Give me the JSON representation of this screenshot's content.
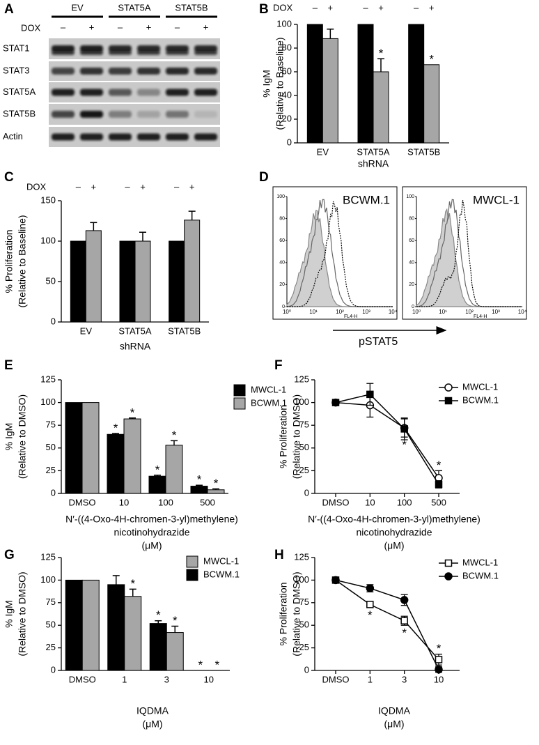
{
  "blot": {
    "panel": "A",
    "groups": [
      "EV",
      "STAT5A",
      "STAT5B"
    ],
    "dox_label": "DOX",
    "dox_signs": [
      "–",
      "+",
      "–",
      "+",
      "–",
      "+"
    ],
    "rows": [
      "STAT1",
      "STAT3",
      "STAT5A",
      "STAT5B",
      "Actin"
    ]
  },
  "flow": {
    "panel": "D",
    "plots": [
      {
        "label": "BCWM.1"
      },
      {
        "label": "MWCL-1"
      }
    ],
    "xticks": [
      "10⁰",
      "10¹",
      "10²",
      "10³",
      "10⁴"
    ],
    "yticks": [
      0,
      20,
      40,
      60,
      80,
      100
    ],
    "xlabel": "FL4-H",
    "arrow_label": "pSTAT5"
  },
  "chart_data": [
    {
      "panel": "B",
      "type": "bar",
      "dox_label": "DOX",
      "dox_signs": [
        "–",
        "+",
        "–",
        "+",
        "–",
        "+"
      ],
      "categories": [
        "EV",
        "STAT5A",
        "STAT5B"
      ],
      "ylabel": [
        "% IgM",
        "(Relative to Baseline)"
      ],
      "xlabel": [
        "shRNA"
      ],
      "ylim": [
        0,
        100
      ],
      "yticks": [
        0,
        20,
        40,
        60,
        80,
        100
      ],
      "series": [
        {
          "color": "#000000",
          "values": [
            100,
            100,
            100
          ]
        },
        {
          "color": "#a6a6a6",
          "values": [
            88,
            60,
            66
          ],
          "errors": [
            8,
            11,
            null
          ],
          "significance": [
            null,
            "*",
            "*"
          ]
        }
      ]
    },
    {
      "panel": "C",
      "type": "bar",
      "dox_label": "DOX",
      "dox_signs": [
        "–",
        "+",
        "–",
        "+",
        "–",
        "+"
      ],
      "categories": [
        "EV",
        "STAT5A",
        "STAT5B"
      ],
      "ylabel": [
        "% Proliferation",
        "(Relative to Baseline)"
      ],
      "xlabel": [
        "shRNA"
      ],
      "ylim": [
        0,
        150
      ],
      "yticks": [
        0,
        50,
        100,
        150
      ],
      "series": [
        {
          "color": "#000000",
          "values": [
            100,
            100,
            100
          ]
        },
        {
          "color": "#a6a6a6",
          "values": [
            113,
            100,
            126
          ],
          "errors": [
            10,
            11,
            11
          ]
        }
      ]
    },
    {
      "panel": "E",
      "type": "bar",
      "categories": [
        "DMSO",
        "10",
        "100",
        "500"
      ],
      "ylabel": [
        "% IgM",
        "(Relative to DMSO)"
      ],
      "xlabel": [
        "N′-((4-Oxo-4H-chromen-3-yl)methylene)",
        "nicotinohydrazide",
        "(μM)"
      ],
      "ylim": [
        0,
        125
      ],
      "yticks": [
        0,
        25,
        50,
        75,
        100,
        125
      ],
      "series": [
        {
          "name": "MWCL-1",
          "color": "#000000",
          "values": [
            100,
            65,
            19,
            8
          ],
          "errors": [
            null,
            1,
            1,
            1
          ],
          "significance": [
            null,
            "*",
            "*",
            "*"
          ]
        },
        {
          "name": "BCWM.1",
          "color": "#a6a6a6",
          "values": [
            100,
            82,
            53,
            4
          ],
          "errors": [
            null,
            1,
            5,
            1
          ],
          "significance": [
            null,
            "*",
            "*",
            "*"
          ]
        }
      ]
    },
    {
      "panel": "F",
      "type": "line",
      "categories": [
        "DMSO",
        "10",
        "100",
        "500"
      ],
      "ylabel": [
        "% Proliferation",
        "(Relative to DMSO)"
      ],
      "xlabel": [
        "N′-((4-Oxo-4H-chromen-3-yl)methylene)",
        "nicotinohydrazide",
        "(μM)"
      ],
      "ylim": [
        0,
        125
      ],
      "yticks": [
        0,
        25,
        50,
        75,
        100,
        125
      ],
      "series": [
        {
          "name": "MWCL-1",
          "color": "#000000",
          "marker": "circle",
          "filled": false,
          "values": [
            100,
            97,
            72,
            17
          ],
          "errors": [
            null,
            13,
            10,
            8
          ],
          "significance": [
            null,
            null,
            "*",
            "*"
          ]
        },
        {
          "name": "BCWM.1",
          "color": "#000000",
          "marker": "square",
          "filled": true,
          "values": [
            100,
            109,
            71,
            10
          ],
          "errors": [
            null,
            12,
            12,
            4
          ]
        }
      ]
    },
    {
      "panel": "G",
      "type": "bar",
      "categories": [
        "DMSO",
        "1",
        "3",
        "10"
      ],
      "ylabel": [
        "% IgM",
        "(Relative to DMSO)"
      ],
      "xlabel": [
        "IQDMA",
        "(μM)"
      ],
      "ylim": [
        0,
        125
      ],
      "yticks": [
        0,
        25,
        50,
        75,
        100,
        125
      ],
      "series": [
        {
          "name": "BCWM.1",
          "color": "#000000",
          "values": [
            100,
            95,
            52,
            0
          ],
          "errors": [
            null,
            10,
            3,
            null
          ],
          "significance": [
            null,
            null,
            "*",
            "*"
          ]
        },
        {
          "name": "MWCL-1",
          "color": "#a6a6a6",
          "values": [
            100,
            82,
            42,
            0
          ],
          "errors": [
            null,
            8,
            7,
            null
          ],
          "significance": [
            null,
            "*",
            "*",
            "*"
          ]
        }
      ]
    },
    {
      "panel": "H",
      "type": "line",
      "categories": [
        "DMSO",
        "1",
        "3",
        "10"
      ],
      "ylabel": [
        "% Proliferation",
        "(Relative to DMSO)"
      ],
      "xlabel": [
        "IQDMA",
        "(μM)"
      ],
      "ylim": [
        0,
        125
      ],
      "yticks": [
        0,
        25,
        50,
        75,
        100,
        125
      ],
      "series": [
        {
          "name": "MWCL-1",
          "color": "#000000",
          "marker": "square",
          "filled": false,
          "values": [
            100,
            73,
            55,
            12
          ],
          "errors": [
            null,
            3,
            5,
            6
          ],
          "significance": [
            null,
            "*",
            "*",
            "*"
          ]
        },
        {
          "name": "BCWM.1",
          "color": "#000000",
          "marker": "circle",
          "filled": true,
          "values": [
            100,
            91,
            78,
            1
          ],
          "errors": [
            null,
            4,
            6,
            3
          ]
        }
      ]
    }
  ]
}
